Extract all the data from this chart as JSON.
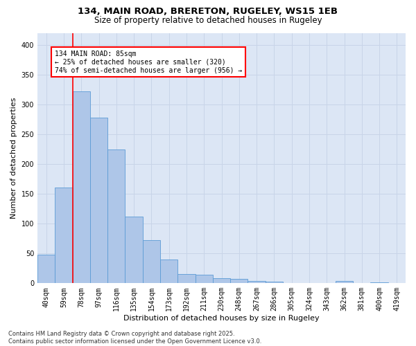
{
  "title_line1": "134, MAIN ROAD, BRERETON, RUGELEY, WS15 1EB",
  "title_line2": "Size of property relative to detached houses in Rugeley",
  "xlabel": "Distribution of detached houses by size in Rugeley",
  "ylabel": "Number of detached properties",
  "categories": [
    "40sqm",
    "59sqm",
    "78sqm",
    "97sqm",
    "116sqm",
    "135sqm",
    "154sqm",
    "173sqm",
    "192sqm",
    "211sqm",
    "230sqm",
    "248sqm",
    "267sqm",
    "286sqm",
    "305sqm",
    "324sqm",
    "343sqm",
    "362sqm",
    "381sqm",
    "400sqm",
    "419sqm"
  ],
  "values": [
    48,
    160,
    322,
    278,
    224,
    112,
    72,
    40,
    15,
    14,
    9,
    7,
    4,
    3,
    0,
    0,
    0,
    4,
    0,
    2,
    0
  ],
  "bar_color": "#aec6e8",
  "bar_edge_color": "#5b9bd5",
  "annotation_box_text": "134 MAIN ROAD: 85sqm\n← 25% of detached houses are smaller (320)\n74% of semi-detached houses are larger (956) →",
  "vline_x": 2.0,
  "vline_color": "red",
  "box_color": "red",
  "ylim": [
    0,
    420
  ],
  "yticks": [
    0,
    50,
    100,
    150,
    200,
    250,
    300,
    350,
    400
  ],
  "grid_color": "#c8d4e8",
  "bg_color": "#dce6f5",
  "footer": "Contains HM Land Registry data © Crown copyright and database right 2025.\nContains public sector information licensed under the Open Government Licence v3.0.",
  "title_fontsize": 9.5,
  "subtitle_fontsize": 8.5,
  "xlabel_fontsize": 8,
  "ylabel_fontsize": 8,
  "tick_fontsize": 7,
  "footer_fontsize": 6,
  "ann_fontsize": 7
}
